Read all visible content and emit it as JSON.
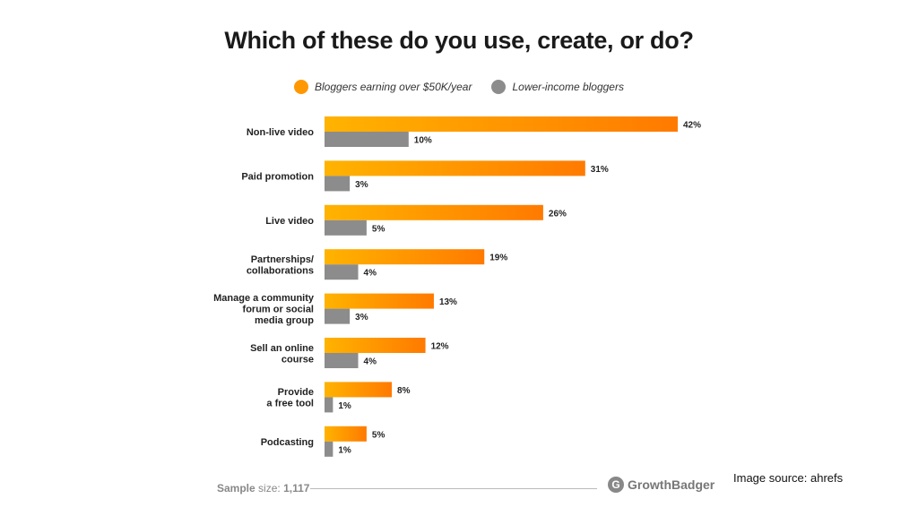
{
  "chart_data": {
    "type": "bar",
    "orientation": "horizontal",
    "title": "Which of these do you use, create, or do?",
    "categories": [
      [
        "Non-live video"
      ],
      [
        "Paid promotion"
      ],
      [
        "Live video"
      ],
      [
        "Partnerships/",
        "collaborations"
      ],
      [
        "Manage a community",
        "forum or social",
        "media group"
      ],
      [
        "Sell an online",
        "course"
      ],
      [
        "Provide",
        "a free tool"
      ],
      [
        "Podcasting"
      ]
    ],
    "series": [
      {
        "name": "Bloggers earning over $50K/year",
        "values": [
          42,
          31,
          26,
          19,
          13,
          12,
          8,
          5
        ],
        "labels": [
          "42%",
          "31%",
          "26%",
          "19%",
          "13%",
          "12%",
          "8%",
          "5%"
        ],
        "color": "#FFB300"
      },
      {
        "name": "Lower-income bloggers",
        "values": [
          10,
          3,
          5,
          4,
          3,
          4,
          1,
          1
        ],
        "labels": [
          "10%",
          "3%",
          "5%",
          "4%",
          "3%",
          "4%",
          "1%",
          "1%"
        ],
        "color": "#8C8C8C"
      }
    ],
    "unit": "%",
    "xlim": [
      0,
      42
    ],
    "legend_position": "top",
    "grid": false
  },
  "footer": {
    "sample_label": "Sample",
    "sample_sub": "size:",
    "sample_value": "1,117",
    "brand": "GrowthBadger",
    "brand_icon": "G"
  },
  "source_note": "Image source: ahrefs",
  "colors": {
    "high_income_end": "#FF7A00",
    "high_income_start": "#FFB300",
    "lower_income": "#8C8C8C"
  }
}
